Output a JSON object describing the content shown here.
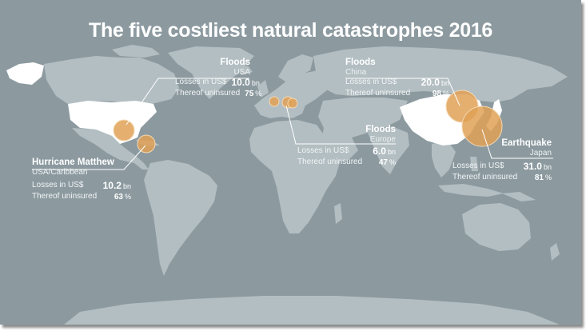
{
  "title": "The five costliest natural catastrophes 2016",
  "colors": {
    "background": "#8c9aa0",
    "land": "#b3bec2",
    "affected_region": "#ffffff",
    "bubble": "#e0a156"
  },
  "events": [
    {
      "event": "Floods",
      "region": "USA",
      "losses_label": "Losses in US$",
      "losses_value": "10.0",
      "losses_unit": "bn",
      "uninsured_label": "Thereof uninsured",
      "uninsured_value": "75",
      "uninsured_unit": "%"
    },
    {
      "event": "Floods",
      "region": "China",
      "losses_label": "Losses in US$",
      "losses_value": "20.0",
      "losses_unit": "bn",
      "uninsured_label": "Thereof uninsured",
      "uninsured_value": "98",
      "uninsured_unit": "%"
    },
    {
      "event": "Hurricane Matthew",
      "region": "USA/Caribbean",
      "losses_label": "Losses in US$",
      "losses_value": "10.2",
      "losses_unit": "bn",
      "uninsured_label": "Thereof uninsured",
      "uninsured_value": "63",
      "uninsured_unit": "%"
    },
    {
      "event": "Floods",
      "region": "Europe",
      "losses_label": "Losses in US$",
      "losses_value": "6.0",
      "losses_unit": "bn",
      "uninsured_label": "Thereof uninsured",
      "uninsured_value": "47",
      "uninsured_unit": "%"
    },
    {
      "event": "Earthquake",
      "region": "Japan",
      "losses_label": "Losses in US$",
      "losses_value": "31.0",
      "losses_unit": "bn",
      "uninsured_label": "Thereof uninsured",
      "uninsured_value": "81",
      "uninsured_unit": "%"
    }
  ]
}
